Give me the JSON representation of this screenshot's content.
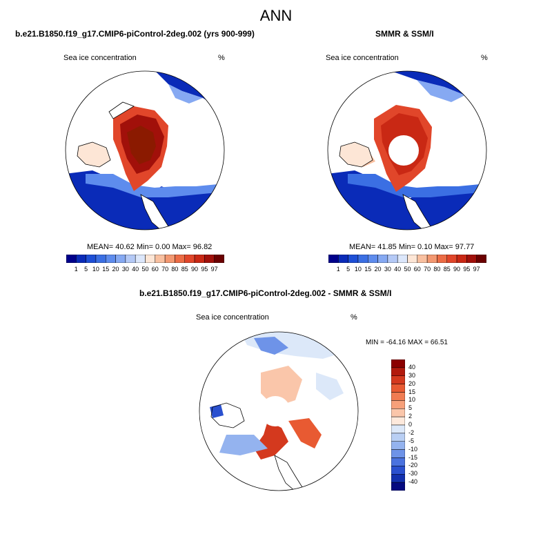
{
  "figure": {
    "title": "ANN"
  },
  "panels": [
    {
      "title": "b.e21.B1850.f19_g17.CMIP6-piControl-2deg.002 (yrs 900-999)",
      "field_label": "Sea ice concentration",
      "units": "%",
      "stats": "MEAN=  40.62   Min=   0.00   Max=  96.82"
    },
    {
      "title": "SMMR & SSM/I",
      "field_label": "Sea ice concentration",
      "units": "%",
      "stats": "MEAN=  41.85   Min=   0.10   Max=  97.77"
    },
    {
      "title": "b.e21.B1850.f19_g17.CMIP6-piControl-2deg.002 - SMMR & SSM/I",
      "field_label": "Sea ice concentration",
      "units": "%",
      "stats": "MIN = -64.16 MAX =  66.51"
    }
  ],
  "colorbar_abs": {
    "labels": [
      "1",
      "5",
      "10",
      "15",
      "20",
      "30",
      "40",
      "50",
      "60",
      "70",
      "80",
      "85",
      "90",
      "95",
      "97"
    ],
    "colors": [
      "#00008b",
      "#0a2bb8",
      "#1e4fd6",
      "#3b6fe3",
      "#5e8ced",
      "#86a9f2",
      "#b4c9f6",
      "#dce7fb",
      "#fde6d6",
      "#f9c0a0",
      "#f39871",
      "#ec6c45",
      "#e1462a",
      "#c92814",
      "#a1100a",
      "#6b0000"
    ]
  },
  "colorbar_diff": {
    "labels": [
      "40",
      "30",
      "20",
      "15",
      "10",
      "5",
      "2",
      "0",
      "-2",
      "-5",
      "-10",
      "-15",
      "-20",
      "-30",
      "-40"
    ],
    "colors": [
      "#8b0000",
      "#b21a0d",
      "#d4391e",
      "#e85a32",
      "#f07c52",
      "#f6a07a",
      "#fac6aa",
      "#fde9dc",
      "#dce8f9",
      "#b9cff4",
      "#94b3ef",
      "#6e93e8",
      "#4a72df",
      "#2a50cf",
      "#1230ae",
      "#050a80"
    ]
  }
}
